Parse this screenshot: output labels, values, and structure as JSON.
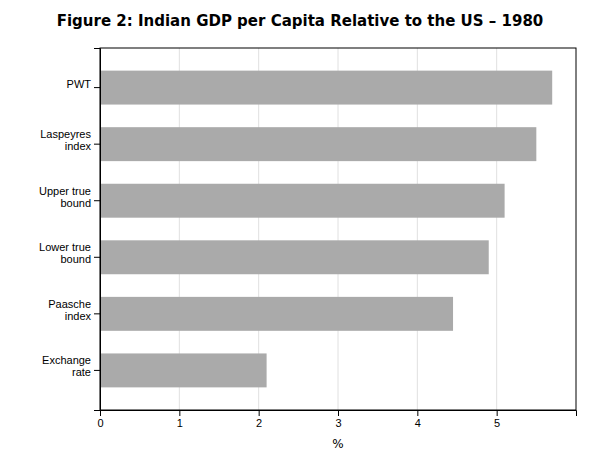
{
  "chart_data": {
    "type": "bar",
    "orientation": "horizontal",
    "title": "Figure 2: Indian GDP per Capita Relative to the US – 1980",
    "categories": [
      "PWT",
      "Laspeyres\nindex",
      "Upper true\nbound",
      "Lower true\nbound",
      "Paasche\nindex",
      "Exchange\nrate"
    ],
    "values": [
      5.7,
      5.5,
      5.1,
      4.9,
      4.45,
      2.1
    ],
    "color": "#aaaaaa",
    "xlabel": "%",
    "xlim": [
      0,
      6
    ],
    "xticks": [
      0,
      1,
      2,
      3,
      4,
      5
    ],
    "grid": true
  }
}
